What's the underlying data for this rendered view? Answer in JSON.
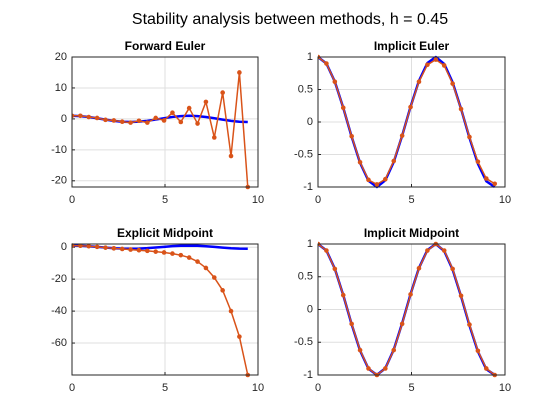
{
  "title": "Stability analysis between methods, h = 0.45",
  "chart_data": [
    {
      "type": "line",
      "title": "Forward Euler",
      "x": [
        0,
        0.45,
        0.9,
        1.35,
        1.8,
        2.25,
        2.7,
        3.15,
        3.6,
        4.05,
        4.5,
        4.95,
        5.4,
        5.85,
        6.3,
        6.75,
        7.2,
        7.65,
        8.1,
        8.55,
        9.0,
        9.45
      ],
      "xlim": [
        0,
        10
      ],
      "xticks": [
        0,
        5,
        10
      ],
      "ylim": [
        -22,
        20
      ],
      "yticks": [
        -20,
        -10,
        0,
        10,
        20
      ],
      "grid": true,
      "series": [
        {
          "color": "#0000ff",
          "markers": false,
          "values": [
            1,
            0.9004,
            0.6216,
            0.219,
            -0.2272,
            -0.6282,
            -0.9041,
            -1.0,
            -0.8968,
            -0.6149,
            -0.2108,
            0.2353,
            0.6347,
            0.9077,
            0.9998,
            0.8931,
            0.6084,
            0.2026,
            -0.2435,
            -0.6411,
            -0.9111,
            -0.9993
          ]
        },
        {
          "color": "#d95319",
          "markers": true,
          "values": [
            1,
            1,
            0.6,
            0.3,
            -0.3,
            -0.5,
            -0.9,
            -1.2,
            -0.6,
            -1.2,
            0.3,
            -0.5,
            2,
            -1,
            3.5,
            -1.5,
            5.5,
            -6,
            8.5,
            -12,
            15,
            -22
          ]
        }
      ]
    },
    {
      "type": "line",
      "title": "Implicit Euler",
      "x": [
        0,
        0.45,
        0.9,
        1.35,
        1.8,
        2.25,
        2.7,
        3.15,
        3.6,
        4.05,
        4.5,
        4.95,
        5.4,
        5.85,
        6.3,
        6.75,
        7.2,
        7.65,
        8.1,
        8.55,
        9.0,
        9.45
      ],
      "xlim": [
        0,
        10
      ],
      "xticks": [
        0,
        5,
        10
      ],
      "ylim": [
        -1,
        1
      ],
      "yticks": [
        -1,
        -0.5,
        0,
        0.5,
        1
      ],
      "grid": true,
      "series": [
        {
          "color": "#0000ff",
          "markers": false,
          "values": [
            1,
            0.9004,
            0.6216,
            0.219,
            -0.2272,
            -0.6282,
            -0.9041,
            -1.0,
            -0.8968,
            -0.6149,
            -0.2108,
            0.2353,
            0.6347,
            0.9077,
            0.9998,
            0.8931,
            0.6084,
            0.2026,
            -0.2435,
            -0.6411,
            -0.9111,
            -0.9993
          ]
        },
        {
          "color": "#d95319",
          "markers": true,
          "values": [
            1,
            0.9,
            0.62,
            0.22,
            -0.22,
            -0.62,
            -0.89,
            -0.96,
            -0.88,
            -0.6,
            -0.21,
            0.23,
            0.62,
            0.88,
            0.96,
            0.87,
            0.59,
            0.2,
            -0.23,
            -0.61,
            -0.87,
            -0.95
          ]
        }
      ]
    },
    {
      "type": "line",
      "title": "Explicit Midpoint",
      "x": [
        0,
        0.45,
        0.9,
        1.35,
        1.8,
        2.25,
        2.7,
        3.15,
        3.6,
        4.05,
        4.5,
        4.95,
        5.4,
        5.85,
        6.3,
        6.75,
        7.2,
        7.65,
        8.1,
        8.55,
        9.0,
        9.45
      ],
      "xlim": [
        0,
        10
      ],
      "xticks": [
        0,
        5,
        10
      ],
      "ylim": [
        -80,
        2
      ],
      "yticks": [
        -60,
        -40,
        -20,
        0
      ],
      "grid": true,
      "series": [
        {
          "color": "#0000ff",
          "markers": false,
          "values": [
            1,
            0.9004,
            0.6216,
            0.219,
            -0.2272,
            -0.6282,
            -0.9041,
            -1.0,
            -0.8968,
            -0.6149,
            -0.2108,
            0.2353,
            0.6347,
            0.9077,
            0.9998,
            0.8931,
            0.6084,
            0.2026,
            -0.2435,
            -0.6411,
            -0.9111,
            -0.9993
          ]
        },
        {
          "color": "#d95319",
          "markers": true,
          "values": [
            1,
            0.9,
            0.6,
            0.2,
            -0.3,
            -0.7,
            -1.1,
            -1.5,
            -1.9,
            -2.3,
            -2.8,
            -3.3,
            -4,
            -5,
            -6.5,
            -9,
            -13,
            -19,
            -27,
            -40,
            -56,
            -80
          ]
        }
      ]
    },
    {
      "type": "line",
      "title": "Implicit Midpoint",
      "x": [
        0,
        0.45,
        0.9,
        1.35,
        1.8,
        2.25,
        2.7,
        3.15,
        3.6,
        4.05,
        4.5,
        4.95,
        5.4,
        5.85,
        6.3,
        6.75,
        7.2,
        7.65,
        8.1,
        8.55,
        9.0,
        9.45
      ],
      "xlim": [
        0,
        10
      ],
      "xticks": [
        0,
        5,
        10
      ],
      "ylim": [
        -1,
        1
      ],
      "yticks": [
        -1,
        -0.5,
        0,
        0.5,
        1
      ],
      "grid": true,
      "series": [
        {
          "color": "#0000ff",
          "markers": false,
          "values": [
            1,
            0.9004,
            0.6216,
            0.219,
            -0.2272,
            -0.6282,
            -0.9041,
            -1.0,
            -0.8968,
            -0.6149,
            -0.2108,
            0.2353,
            0.6347,
            0.9077,
            0.9998,
            0.8931,
            0.6084,
            0.2026,
            -0.2435,
            -0.6411,
            -0.9111,
            -0.9993
          ]
        },
        {
          "color": "#d95319",
          "markers": true,
          "values": [
            1,
            0.9,
            0.62,
            0.22,
            -0.22,
            -0.62,
            -0.9,
            -1.0,
            -0.9,
            -0.62,
            -0.22,
            0.23,
            0.63,
            0.9,
            1.0,
            0.9,
            0.62,
            0.21,
            -0.23,
            -0.63,
            -0.9,
            -1.0
          ]
        }
      ]
    }
  ]
}
